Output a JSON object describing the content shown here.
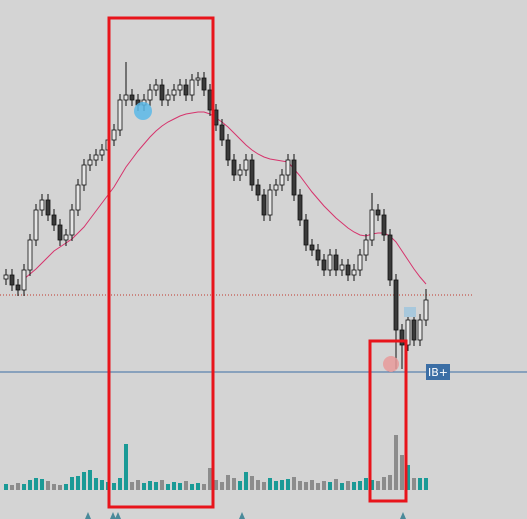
{
  "chart_data": {
    "type": "candlestick",
    "ylim": [
      0,
      519
    ],
    "open": [
      240,
      244,
      234,
      229,
      249,
      279,
      309,
      319,
      304,
      294,
      279,
      284,
      309,
      334,
      354,
      359,
      364,
      369,
      379,
      389,
      419,
      424,
      419,
      414,
      419,
      429,
      434,
      419,
      424,
      429,
      434,
      424,
      439,
      441,
      429,
      409,
      394,
      379,
      359,
      344,
      349,
      359,
      334,
      324,
      304,
      329,
      334,
      344,
      359,
      324,
      299,
      274,
      269,
      259,
      249,
      264,
      249,
      254,
      244,
      249,
      264,
      279,
      309,
      304,
      284,
      239,
      189,
      174,
      199,
      179,
      199
    ],
    "high": [
      250,
      250,
      240,
      255,
      285,
      315,
      325,
      325,
      310,
      300,
      290,
      315,
      340,
      360,
      365,
      370,
      375,
      385,
      395,
      425,
      457,
      430,
      425,
      425,
      435,
      440,
      440,
      430,
      435,
      440,
      440,
      445,
      447,
      447,
      435,
      415,
      400,
      385,
      365,
      355,
      365,
      365,
      340,
      330,
      335,
      340,
      350,
      365,
      365,
      330,
      305,
      280,
      275,
      265,
      270,
      270,
      260,
      260,
      255,
      270,
      285,
      326,
      315,
      310,
      290,
      245,
      195,
      205,
      205,
      205,
      230
    ],
    "low": [
      234,
      228,
      223,
      223,
      243,
      273,
      303,
      298,
      288,
      273,
      273,
      278,
      303,
      328,
      348,
      353,
      358,
      363,
      373,
      383,
      413,
      413,
      408,
      408,
      413,
      423,
      413,
      413,
      418,
      423,
      418,
      418,
      433,
      423,
      403,
      388,
      373,
      353,
      338,
      338,
      343,
      328,
      318,
      298,
      298,
      323,
      328,
      338,
      318,
      293,
      268,
      263,
      253,
      243,
      243,
      243,
      243,
      238,
      238,
      243,
      258,
      273,
      298,
      278,
      233,
      150,
      150,
      168,
      173,
      173,
      193
    ],
    "close": [
      244,
      234,
      229,
      249,
      279,
      309,
      319,
      304,
      294,
      279,
      284,
      309,
      334,
      354,
      359,
      364,
      369,
      379,
      389,
      419,
      424,
      419,
      414,
      419,
      429,
      434,
      419,
      424,
      429,
      434,
      424,
      439,
      441,
      429,
      409,
      394,
      379,
      359,
      344,
      349,
      359,
      334,
      324,
      304,
      329,
      334,
      344,
      359,
      324,
      299,
      274,
      269,
      259,
      249,
      264,
      249,
      254,
      244,
      249,
      264,
      279,
      309,
      304,
      284,
      239,
      189,
      174,
      199,
      179,
      199,
      219
    ],
    "volume": [
      6,
      5,
      7,
      6,
      10,
      12,
      11,
      9,
      6,
      5,
      6,
      13,
      14,
      18,
      20,
      12,
      10,
      8,
      7,
      12,
      46,
      8,
      10,
      7,
      9,
      8,
      10,
      6,
      8,
      7,
      9,
      6,
      7,
      6,
      22,
      10,
      8,
      15,
      12,
      9,
      18,
      14,
      10,
      8,
      12,
      9,
      10,
      11,
      13,
      9,
      8,
      10,
      7,
      9,
      8,
      11,
      7,
      9,
      8,
      9,
      12,
      10,
      9,
      13,
      15,
      55,
      35,
      25,
      12,
      12,
      12
    ],
    "moving_average": {
      "color": "#d6336c",
      "values": [
        null,
        null,
        null,
        240,
        245,
        250,
        256,
        262,
        268,
        272,
        276,
        280,
        286,
        292,
        300,
        308,
        316,
        324,
        332,
        342,
        352,
        360,
        368,
        375,
        382,
        388,
        393,
        397,
        400,
        403,
        405,
        406,
        407,
        407,
        405,
        401,
        397,
        392,
        386,
        380,
        374,
        369,
        365,
        362,
        360,
        359,
        358,
        357,
        350,
        343,
        335,
        327,
        320,
        313,
        307,
        301,
        296,
        291,
        287,
        284,
        283,
        285,
        286,
        286,
        283,
        277,
        268,
        259,
        250,
        242,
        235
      ]
    },
    "up_color": "#e6e6e6",
    "down_color": "#3a3a3a",
    "volume_up_color": "#1a9a96",
    "volume_down_color": "#8c8c8c",
    "levels": [
      {
        "value": 224,
        "color": "#c0392b",
        "dashed": true
      },
      {
        "value": 147,
        "color": "#3b6ea5",
        "dashed": false,
        "label": "IB+"
      }
    ]
  }
}
